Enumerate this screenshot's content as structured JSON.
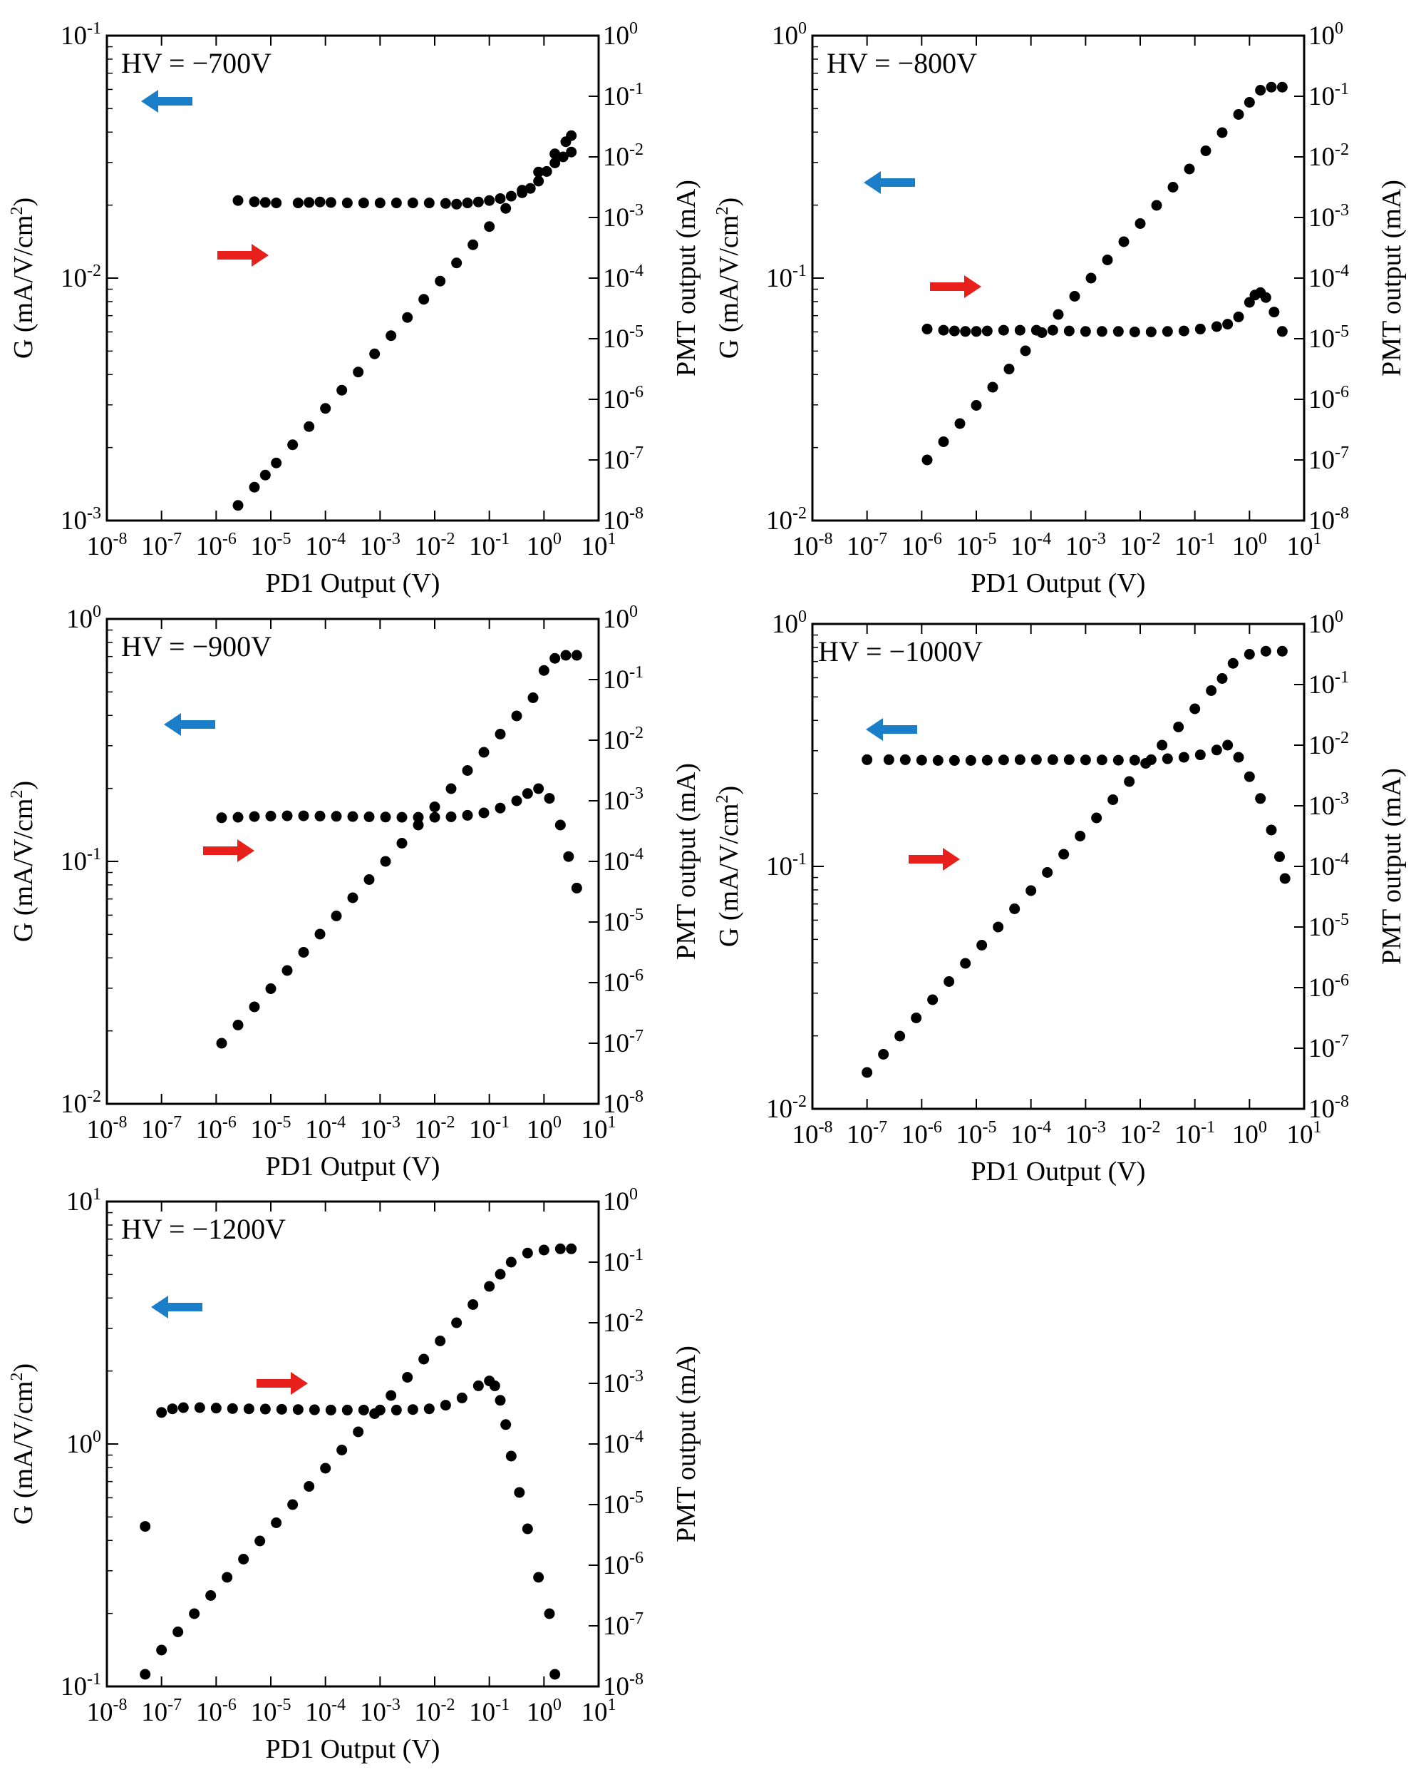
{
  "figure": {
    "description_labels": {
      "x_axis": "PD1 Output (V)",
      "y_left": "G (mA/V/cm",
      "y_left_sup": "2",
      "y_left_close": ")",
      "y_right": "PMT output (mA)"
    },
    "colors": {
      "points": "#000000",
      "left_arrow": "#1a7ec8",
      "right_arrow": "#e8201c",
      "frame": "#000000"
    }
  },
  "chart_data": [
    {
      "type": "scatter",
      "title": "HV = −700V",
      "xlabel": "PD1 Output (V)",
      "ylabel": "G (mA/V/cm2)",
      "y2label": "PMT output (mA)",
      "xscale": "log",
      "yscale": "log",
      "y2scale": "log",
      "xlim": [
        -8,
        1
      ],
      "ylim": [
        -3,
        -1
      ],
      "y2lim": [
        -8,
        0
      ],
      "x_ticks": [
        "10^-8",
        "10^-7",
        "10^-6",
        "10^-5",
        "10^-4",
        "10^-3",
        "10^-2",
        "10^-1",
        "10^0",
        "10^1"
      ],
      "y_ticks": [
        "10^-3",
        "10^-2",
        "10^-1"
      ],
      "y2_ticks": [
        "10^-8",
        "10^-7",
        "10^-6",
        "10^-5",
        "10^-4",
        "10^-3",
        "10^-2",
        "10^-1",
        "10^0"
      ],
      "series": [
        {
          "name": "G (left axis)",
          "axis": "left",
          "x_log10": [
            -5.6,
            -5.3,
            -5.1,
            -4.9,
            -4.5,
            -4.3,
            -4.1,
            -3.9,
            -3.6,
            -3.3,
            -3.0,
            -2.7,
            -2.4,
            -2.1,
            -1.8,
            -1.6,
            -1.4,
            -1.2,
            -1.0,
            -0.8,
            -0.6,
            -0.4,
            -0.25,
            -0.1,
            0.05,
            0.2,
            0.35,
            0.5
          ],
          "y_log10": [
            -1.68,
            -1.685,
            -1.688,
            -1.69,
            -1.69,
            -1.688,
            -1.686,
            -1.688,
            -1.69,
            -1.69,
            -1.69,
            -1.69,
            -1.69,
            -1.69,
            -1.692,
            -1.695,
            -1.69,
            -1.686,
            -1.68,
            -1.672,
            -1.662,
            -1.648,
            -1.63,
            -1.6,
            -1.56,
            -1.525,
            -1.5,
            -1.48
          ]
        },
        {
          "name": "PMT output (right axis)",
          "axis": "right",
          "x_log10": [
            -5.6,
            -5.3,
            -5.1,
            -4.9,
            -4.6,
            -4.3,
            -4.0,
            -3.7,
            -3.4,
            -3.1,
            -2.8,
            -2.5,
            -2.2,
            -1.9,
            -1.6,
            -1.3,
            -1.0,
            -0.7,
            -0.4,
            -0.1,
            0.2,
            0.4,
            0.5
          ],
          "y_log10": [
            -7.75,
            -7.45,
            -7.25,
            -7.05,
            -6.75,
            -6.45,
            -6.15,
            -5.85,
            -5.55,
            -5.25,
            -4.95,
            -4.65,
            -4.35,
            -4.05,
            -3.75,
            -3.45,
            -3.15,
            -2.85,
            -2.55,
            -2.25,
            -1.95,
            -1.75,
            -1.65
          ]
        }
      ],
      "annotations": [
        {
          "label": "left-arrow",
          "points_to": "left axis"
        },
        {
          "label": "right-arrow",
          "points_to": "right axis"
        }
      ]
    },
    {
      "type": "scatter",
      "title": "HV = −800V",
      "xlabel": "PD1 Output (V)",
      "ylabel": "G (mA/V/cm2)",
      "y2label": "PMT output (mA)",
      "xscale": "log",
      "yscale": "log",
      "y2scale": "log",
      "xlim": [
        -8,
        1
      ],
      "ylim": [
        -2,
        0
      ],
      "y2lim": [
        -8,
        0
      ],
      "x_ticks": [
        "10^-8",
        "10^-7",
        "10^-6",
        "10^-5",
        "10^-4",
        "10^-3",
        "10^-2",
        "10^-1",
        "10^0",
        "10^1"
      ],
      "y_ticks": [
        "10^-2",
        "10^-1",
        "10^0"
      ],
      "y2_ticks": [
        "10^-8",
        "10^-7",
        "10^-6",
        "10^-5",
        "10^-4",
        "10^-3",
        "10^-2",
        "10^-1",
        "10^0"
      ],
      "series": [
        {
          "name": "G (left axis)",
          "axis": "left",
          "x_log10": [
            -5.9,
            -5.6,
            -5.4,
            -5.2,
            -5.0,
            -4.8,
            -4.5,
            -4.2,
            -3.9,
            -3.6,
            -3.3,
            -3.0,
            -2.7,
            -2.4,
            -2.1,
            -1.8,
            -1.5,
            -1.2,
            -0.9,
            -0.6,
            -0.4,
            -0.2,
            0.0,
            0.1,
            0.2,
            0.3,
            0.45,
            0.6
          ],
          "y_log10": [
            -1.21,
            -1.215,
            -1.218,
            -1.22,
            -1.22,
            -1.218,
            -1.215,
            -1.215,
            -1.215,
            -1.215,
            -1.218,
            -1.22,
            -1.22,
            -1.22,
            -1.222,
            -1.222,
            -1.22,
            -1.218,
            -1.21,
            -1.2,
            -1.19,
            -1.16,
            -1.1,
            -1.07,
            -1.06,
            -1.08,
            -1.14,
            -1.22
          ]
        },
        {
          "name": "PMT output (right axis)",
          "axis": "right",
          "x_log10": [
            -5.9,
            -5.6,
            -5.3,
            -5.0,
            -4.7,
            -4.4,
            -4.1,
            -3.8,
            -3.5,
            -3.2,
            -2.9,
            -2.6,
            -2.3,
            -2.0,
            -1.7,
            -1.4,
            -1.1,
            -0.8,
            -0.5,
            -0.2,
            0.0,
            0.2,
            0.4,
            0.6
          ],
          "y_log10": [
            -7.0,
            -6.7,
            -6.4,
            -6.1,
            -5.8,
            -5.5,
            -5.2,
            -4.9,
            -4.6,
            -4.3,
            -4.0,
            -3.7,
            -3.4,
            -3.1,
            -2.8,
            -2.5,
            -2.2,
            -1.9,
            -1.6,
            -1.3,
            -1.1,
            -0.9,
            -0.85,
            -0.85
          ]
        }
      ],
      "annotations": [
        {
          "label": "left-arrow",
          "points_to": "left axis"
        },
        {
          "label": "right-arrow",
          "points_to": "right axis"
        }
      ]
    },
    {
      "type": "scatter",
      "title": "HV = −900V",
      "xlabel": "PD1 Output (V)",
      "ylabel": "G (mA/V/cm2)",
      "y2label": "PMT output (mA)",
      "xscale": "log",
      "yscale": "log",
      "y2scale": "log",
      "xlim": [
        -8,
        1
      ],
      "ylim": [
        -2,
        0
      ],
      "y2lim": [
        -8,
        0
      ],
      "x_ticks": [
        "10^-8",
        "10^-7",
        "10^-6",
        "10^-5",
        "10^-4",
        "10^-3",
        "10^-2",
        "10^-1",
        "10^0",
        "10^1"
      ],
      "y_ticks": [
        "10^-2",
        "10^-1",
        "10^0"
      ],
      "y2_ticks": [
        "10^-8",
        "10^-7",
        "10^-6",
        "10^-5",
        "10^-4",
        "10^-3",
        "10^-2",
        "10^-1",
        "10^0"
      ],
      "series": [
        {
          "name": "G (left axis)",
          "axis": "left",
          "x_log10": [
            -5.9,
            -5.6,
            -5.3,
            -5.0,
            -4.7,
            -4.4,
            -4.1,
            -3.8,
            -3.5,
            -3.2,
            -2.9,
            -2.6,
            -2.3,
            -2.0,
            -1.7,
            -1.4,
            -1.1,
            -0.8,
            -0.5,
            -0.3,
            -0.1,
            0.1,
            0.3,
            0.45,
            0.6
          ],
          "y_log10": [
            -0.82,
            -0.818,
            -0.815,
            -0.813,
            -0.812,
            -0.812,
            -0.813,
            -0.814,
            -0.815,
            -0.816,
            -0.817,
            -0.818,
            -0.818,
            -0.818,
            -0.816,
            -0.81,
            -0.8,
            -0.78,
            -0.75,
            -0.72,
            -0.7,
            -0.74,
            -0.85,
            -0.98,
            -1.11
          ]
        },
        {
          "name": "PMT output (right axis)",
          "axis": "right",
          "x_log10": [
            -5.9,
            -5.6,
            -5.3,
            -5.0,
            -4.7,
            -4.4,
            -4.1,
            -3.8,
            -3.5,
            -3.2,
            -2.9,
            -2.6,
            -2.3,
            -2.0,
            -1.7,
            -1.4,
            -1.1,
            -0.8,
            -0.5,
            -0.2,
            0.0,
            0.2,
            0.4,
            0.6
          ],
          "y_log10": [
            -7.0,
            -6.7,
            -6.4,
            -6.1,
            -5.8,
            -5.5,
            -5.2,
            -4.9,
            -4.6,
            -4.3,
            -4.0,
            -3.7,
            -3.4,
            -3.1,
            -2.8,
            -2.5,
            -2.2,
            -1.9,
            -1.6,
            -1.3,
            -0.85,
            -0.65,
            -0.6,
            -0.6
          ]
        }
      ],
      "annotations": [
        {
          "label": "left-arrow",
          "points_to": "left axis"
        },
        {
          "label": "right-arrow",
          "points_to": "right axis"
        }
      ]
    },
    {
      "type": "scatter",
      "title": "HV = −1000V",
      "xlabel": "PD1 Output (V)",
      "ylabel": "G (mA/V/cm2)",
      "y2label": "PMT output (mA)",
      "xscale": "log",
      "yscale": "log",
      "y2scale": "log",
      "xlim": [
        -8,
        1
      ],
      "ylim": [
        -2,
        0
      ],
      "y2lim": [
        -8,
        0
      ],
      "x_ticks": [
        "10^-8",
        "10^-7",
        "10^-6",
        "10^-5",
        "10^-4",
        "10^-3",
        "10^-2",
        "10^-1",
        "10^0",
        "10^1"
      ],
      "y_ticks": [
        "10^-2",
        "10^-1",
        "10^0"
      ],
      "y2_ticks": [
        "10^-8",
        "10^-7",
        "10^-6",
        "10^-5",
        "10^-4",
        "10^-3",
        "10^-2",
        "10^-1",
        "10^0"
      ],
      "series": [
        {
          "name": "G (left axis)",
          "axis": "left",
          "x_log10": [
            -7.0,
            -6.6,
            -6.3,
            -6.0,
            -5.7,
            -5.4,
            -5.1,
            -4.8,
            -4.5,
            -4.2,
            -3.9,
            -3.6,
            -3.3,
            -3.0,
            -2.7,
            -2.4,
            -2.1,
            -1.8,
            -1.5,
            -1.2,
            -0.9,
            -0.6,
            -0.4,
            -0.2,
            0.0,
            0.2,
            0.4,
            0.55,
            0.65
          ],
          "y_log10": [
            -0.56,
            -0.56,
            -0.56,
            -0.562,
            -0.563,
            -0.563,
            -0.563,
            -0.562,
            -0.561,
            -0.56,
            -0.56,
            -0.56,
            -0.56,
            -0.561,
            -0.561,
            -0.562,
            -0.562,
            -0.56,
            -0.556,
            -0.55,
            -0.54,
            -0.52,
            -0.5,
            -0.55,
            -0.63,
            -0.72,
            -0.85,
            -0.96,
            -1.05
          ]
        },
        {
          "name": "PMT output (right axis)",
          "axis": "right",
          "x_log10": [
            -7.0,
            -6.7,
            -6.4,
            -6.1,
            -5.8,
            -5.5,
            -5.2,
            -4.9,
            -4.6,
            -4.3,
            -4.0,
            -3.7,
            -3.4,
            -3.1,
            -2.8,
            -2.5,
            -2.2,
            -1.9,
            -1.6,
            -1.3,
            -1.0,
            -0.7,
            -0.5,
            -0.3,
            0.0,
            0.3,
            0.6
          ],
          "y_log10": [
            -7.4,
            -7.1,
            -6.8,
            -6.5,
            -6.2,
            -5.9,
            -5.6,
            -5.3,
            -5.0,
            -4.7,
            -4.4,
            -4.1,
            -3.8,
            -3.5,
            -3.2,
            -2.9,
            -2.6,
            -2.3,
            -2.0,
            -1.7,
            -1.4,
            -1.1,
            -0.9,
            -0.65,
            -0.5,
            -0.45,
            -0.45
          ]
        }
      ],
      "annotations": [
        {
          "label": "left-arrow",
          "points_to": "left axis"
        },
        {
          "label": "right-arrow",
          "points_to": "right axis"
        }
      ]
    },
    {
      "type": "scatter",
      "title": "HV = −1200V",
      "xlabel": "PD1 Output (V)",
      "ylabel": "G (mA/V/cm2)",
      "y2label": "PMT output (mA)",
      "xscale": "log",
      "yscale": "log",
      "y2scale": "log",
      "xlim": [
        -8,
        1
      ],
      "ylim": [
        -1,
        1
      ],
      "y2lim": [
        -8,
        0
      ],
      "x_ticks": [
        "10^-8",
        "10^-7",
        "10^-6",
        "10^-5",
        "10^-4",
        "10^-3",
        "10^-2",
        "10^-1",
        "10^0",
        "10^1"
      ],
      "y_ticks": [
        "10^-1",
        "10^0",
        "10^1"
      ],
      "y2_ticks": [
        "10^-8",
        "10^-7",
        "10^-6",
        "10^-5",
        "10^-4",
        "10^-3",
        "10^-2",
        "10^-1",
        "10^0"
      ],
      "series": [
        {
          "name": "G (left axis)",
          "axis": "left",
          "x_log10": [
            -7.3,
            -7.0,
            -6.8,
            -6.6,
            -6.3,
            -6.0,
            -5.7,
            -5.4,
            -5.1,
            -4.8,
            -4.5,
            -4.2,
            -3.9,
            -3.6,
            -3.3,
            -3.0,
            -2.7,
            -2.4,
            -2.1,
            -1.8,
            -1.5,
            -1.2,
            -1.0,
            -0.9,
            -0.8,
            -0.7,
            -0.6,
            -0.45,
            -0.3,
            -0.1,
            0.1,
            0.2
          ],
          "y_log10": [
            -0.34,
            0.13,
            0.145,
            0.15,
            0.15,
            0.148,
            0.146,
            0.145,
            0.144,
            0.143,
            0.142,
            0.141,
            0.14,
            0.14,
            0.14,
            0.14,
            0.14,
            0.142,
            0.145,
            0.16,
            0.19,
            0.24,
            0.26,
            0.24,
            0.18,
            0.08,
            -0.05,
            -0.2,
            -0.35,
            -0.55,
            -0.7,
            -0.95
          ]
        },
        {
          "name": "PMT output (right axis)",
          "axis": "right",
          "x_log10": [
            -7.3,
            -7.0,
            -6.7,
            -6.4,
            -6.1,
            -5.8,
            -5.5,
            -5.2,
            -4.9,
            -4.6,
            -4.3,
            -4.0,
            -3.7,
            -3.4,
            -3.1,
            -2.8,
            -2.5,
            -2.2,
            -1.9,
            -1.6,
            -1.3,
            -1.0,
            -0.8,
            -0.6,
            -0.3,
            0.0,
            0.3,
            0.5
          ],
          "y_log10": [
            -7.8,
            -7.4,
            -7.1,
            -6.8,
            -6.5,
            -6.2,
            -5.9,
            -5.6,
            -5.3,
            -5.0,
            -4.7,
            -4.4,
            -4.1,
            -3.8,
            -3.5,
            -3.2,
            -2.9,
            -2.6,
            -2.3,
            -2.0,
            -1.7,
            -1.4,
            -1.2,
            -1.0,
            -0.85,
            -0.8,
            -0.78,
            -0.78
          ]
        }
      ],
      "annotations": [
        {
          "label": "left-arrow",
          "points_to": "left axis"
        },
        {
          "label": "right-arrow",
          "points_to": "right axis"
        }
      ]
    }
  ]
}
